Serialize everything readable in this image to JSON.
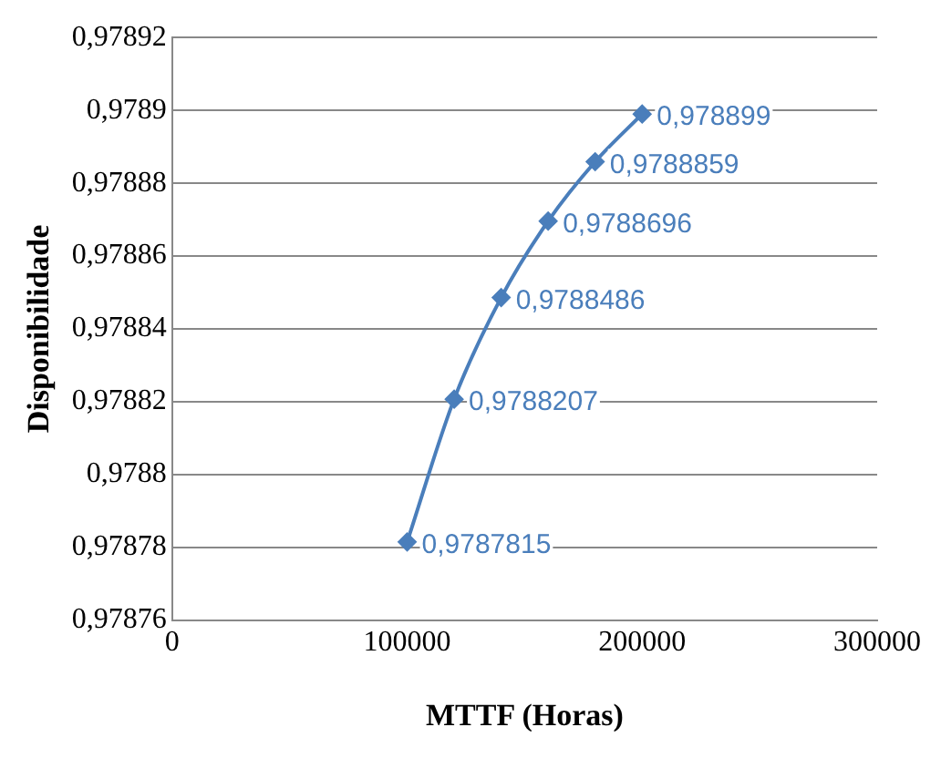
{
  "chart_data": {
    "type": "line",
    "xlabel": "MTTF (Horas)",
    "ylabel": "Disponibilidade",
    "xlim": [
      0,
      300000
    ],
    "xticks": [
      0,
      100000,
      200000,
      300000
    ],
    "ylim": [
      0.97876,
      0.97892
    ],
    "yticks": [
      {
        "value": 0.97876,
        "label": "0,97876"
      },
      {
        "value": 0.97878,
        "label": "0,97878"
      },
      {
        "value": 0.9788,
        "label": "0,9788"
      },
      {
        "value": 0.97882,
        "label": "0,97882"
      },
      {
        "value": 0.97884,
        "label": "0,97884"
      },
      {
        "value": 0.97886,
        "label": "0,97886"
      },
      {
        "value": 0.97888,
        "label": "0,97888"
      },
      {
        "value": 0.9789,
        "label": "0,9789"
      },
      {
        "value": 0.97892,
        "label": "0,97892"
      }
    ],
    "grid": "y",
    "legend": false,
    "marker": "diamond",
    "line_style": "solid",
    "x": [
      100000,
      120000,
      140000,
      160000,
      180000,
      200000
    ],
    "series": [
      {
        "color": "#4a7ebb",
        "values": [
          0.9787815,
          0.9788207,
          0.9788486,
          0.9788696,
          0.9788859,
          0.978899
        ],
        "value_labels": [
          "0,9787815",
          "0,9788207",
          "0,9788486",
          "0,9788696",
          "0,9788859",
          "0,978899"
        ]
      }
    ]
  }
}
